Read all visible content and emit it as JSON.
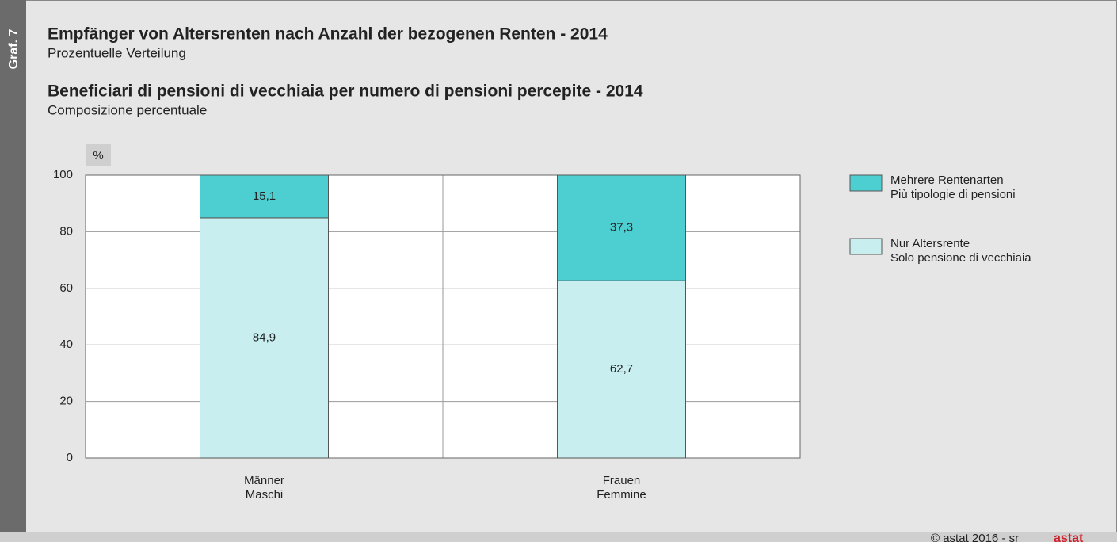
{
  "side_label": "Graf. 7",
  "footer": "© astat 2016 - sr",
  "logo": "astat",
  "chart_data": {
    "type": "stacked_bar",
    "title": "Empfänger von Altersrenten nach Anzahl der bezogenen Renten - 2014",
    "subtitle": "Prozentuelle Verteilung",
    "title_it": "Beneficiari di pensioni di vecchiaia per numero di pensioni percepite - 2014",
    "subtitle_it": "Composizione percentuale",
    "y_label": "%",
    "categories": [
      "Männer\nMaschi",
      "Frauen\nFemmine"
    ],
    "series": [
      {
        "name": "Nur Altersrente\nSolo pensione di vecchiaia",
        "color": "#c8eef0",
        "values": [
          84.9,
          62.7
        ],
        "value_labels": [
          "84,9",
          "62,7"
        ]
      },
      {
        "name": "Mehrere Rentenarten\nPiù tipologie di pensioni",
        "color": "#4dcfd2",
        "values": [
          15.1,
          37.3
        ],
        "value_labels": [
          "15,1",
          "37,3"
        ]
      }
    ],
    "ylim": [
      0,
      100
    ],
    "yticks": [
      0,
      20,
      40,
      60,
      80,
      100
    ],
    "grid": true
  }
}
